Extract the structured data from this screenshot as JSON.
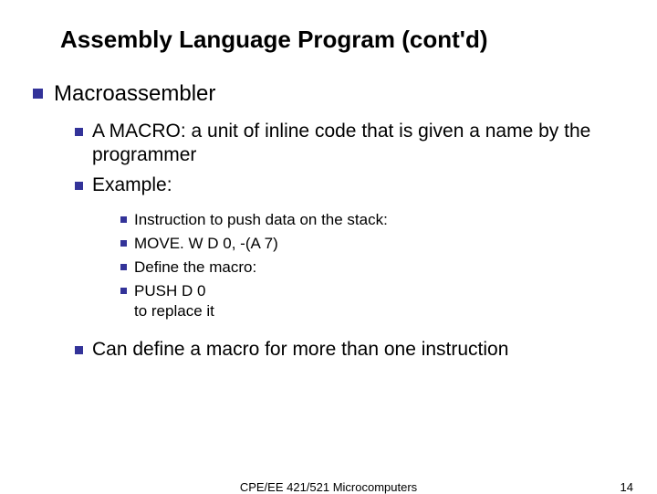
{
  "title": "Assembly Language Program (cont'd)",
  "l1": {
    "text": "Macroassembler"
  },
  "l2a": {
    "text": "A MACRO: a unit of inline code that is given a name by the programmer"
  },
  "l2b": {
    "text": "Example:"
  },
  "l3a": {
    "text": "Instruction to push data on the stack:"
  },
  "l3b": {
    "text": "MOVE. W D 0, -(A 7)"
  },
  "l3c": {
    "text": "Define the macro:"
  },
  "l3d": {
    "text": "PUSH D 0\nto replace it"
  },
  "l2c": {
    "text": "Can define a macro for more than one instruction"
  },
  "footer": {
    "center": "CPE/EE 421/521 Microcomputers",
    "pageno": "14"
  },
  "colors": {
    "bullet": "#333399",
    "text": "#000000",
    "background": "#ffffff"
  },
  "typography": {
    "title_size": 26,
    "l1_size": 24,
    "l2_size": 21,
    "l3_size": 17,
    "footer_size": 13,
    "family": "Verdana"
  }
}
